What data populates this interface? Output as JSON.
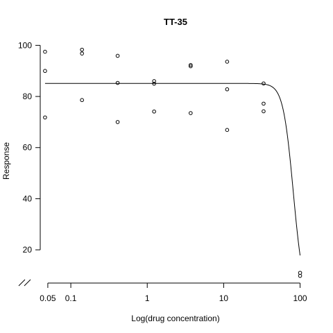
{
  "chart_data": {
    "type": "scatter",
    "title": "TT-35",
    "xlabel": "Log(drug concentration)",
    "ylabel": "Response",
    "x_scale": "log",
    "x_ticks": [
      {
        "value": 0.05,
        "label": "0.05"
      },
      {
        "value": 0.1,
        "label": "0.1"
      },
      {
        "value": 1,
        "label": "1"
      },
      {
        "value": 10,
        "label": "10"
      },
      {
        "value": 100,
        "label": "100"
      }
    ],
    "y_ticks": [
      20,
      40,
      60,
      80,
      100
    ],
    "y_axis_break": true,
    "xlim": [
      0.0398,
      141
    ],
    "ylim": [
      7,
      102
    ],
    "grid": false,
    "legend": "none",
    "points": [
      {
        "x": 0.046,
        "y": 97.5
      },
      {
        "x": 0.046,
        "y": 90
      },
      {
        "x": 0.046,
        "y": 71.8
      },
      {
        "x": 0.14,
        "y": 98.3
      },
      {
        "x": 0.14,
        "y": 96.8
      },
      {
        "x": 0.14,
        "y": 78.6
      },
      {
        "x": 0.41,
        "y": 95.9
      },
      {
        "x": 0.41,
        "y": 85.3
      },
      {
        "x": 0.41,
        "y": 70
      },
      {
        "x": 1.23,
        "y": 86
      },
      {
        "x": 1.23,
        "y": 85
      },
      {
        "x": 1.23,
        "y": 74.1
      },
      {
        "x": 3.7,
        "y": 92.3
      },
      {
        "x": 3.7,
        "y": 91.8
      },
      {
        "x": 3.7,
        "y": 73.5
      },
      {
        "x": 11.1,
        "y": 93.6
      },
      {
        "x": 11.1,
        "y": 82.8
      },
      {
        "x": 11.1,
        "y": 66.9
      },
      {
        "x": 33.3,
        "y": 85.1
      },
      {
        "x": 33.3,
        "y": 77.2
      },
      {
        "x": 33.3,
        "y": 74.2
      },
      {
        "x": 100,
        "y": 11
      },
      {
        "x": 100,
        "y": 9.8
      }
    ],
    "fit_curve": {
      "model": "Hill (4-parameter logistic)",
      "top": 85.1,
      "bottom": 0,
      "ec50": 81.5,
      "hill_slope": 6.5,
      "x_range": [
        0.046,
        100
      ]
    },
    "colors": {
      "points": "#000000",
      "curve": "#000000",
      "axes": "#000000"
    }
  }
}
